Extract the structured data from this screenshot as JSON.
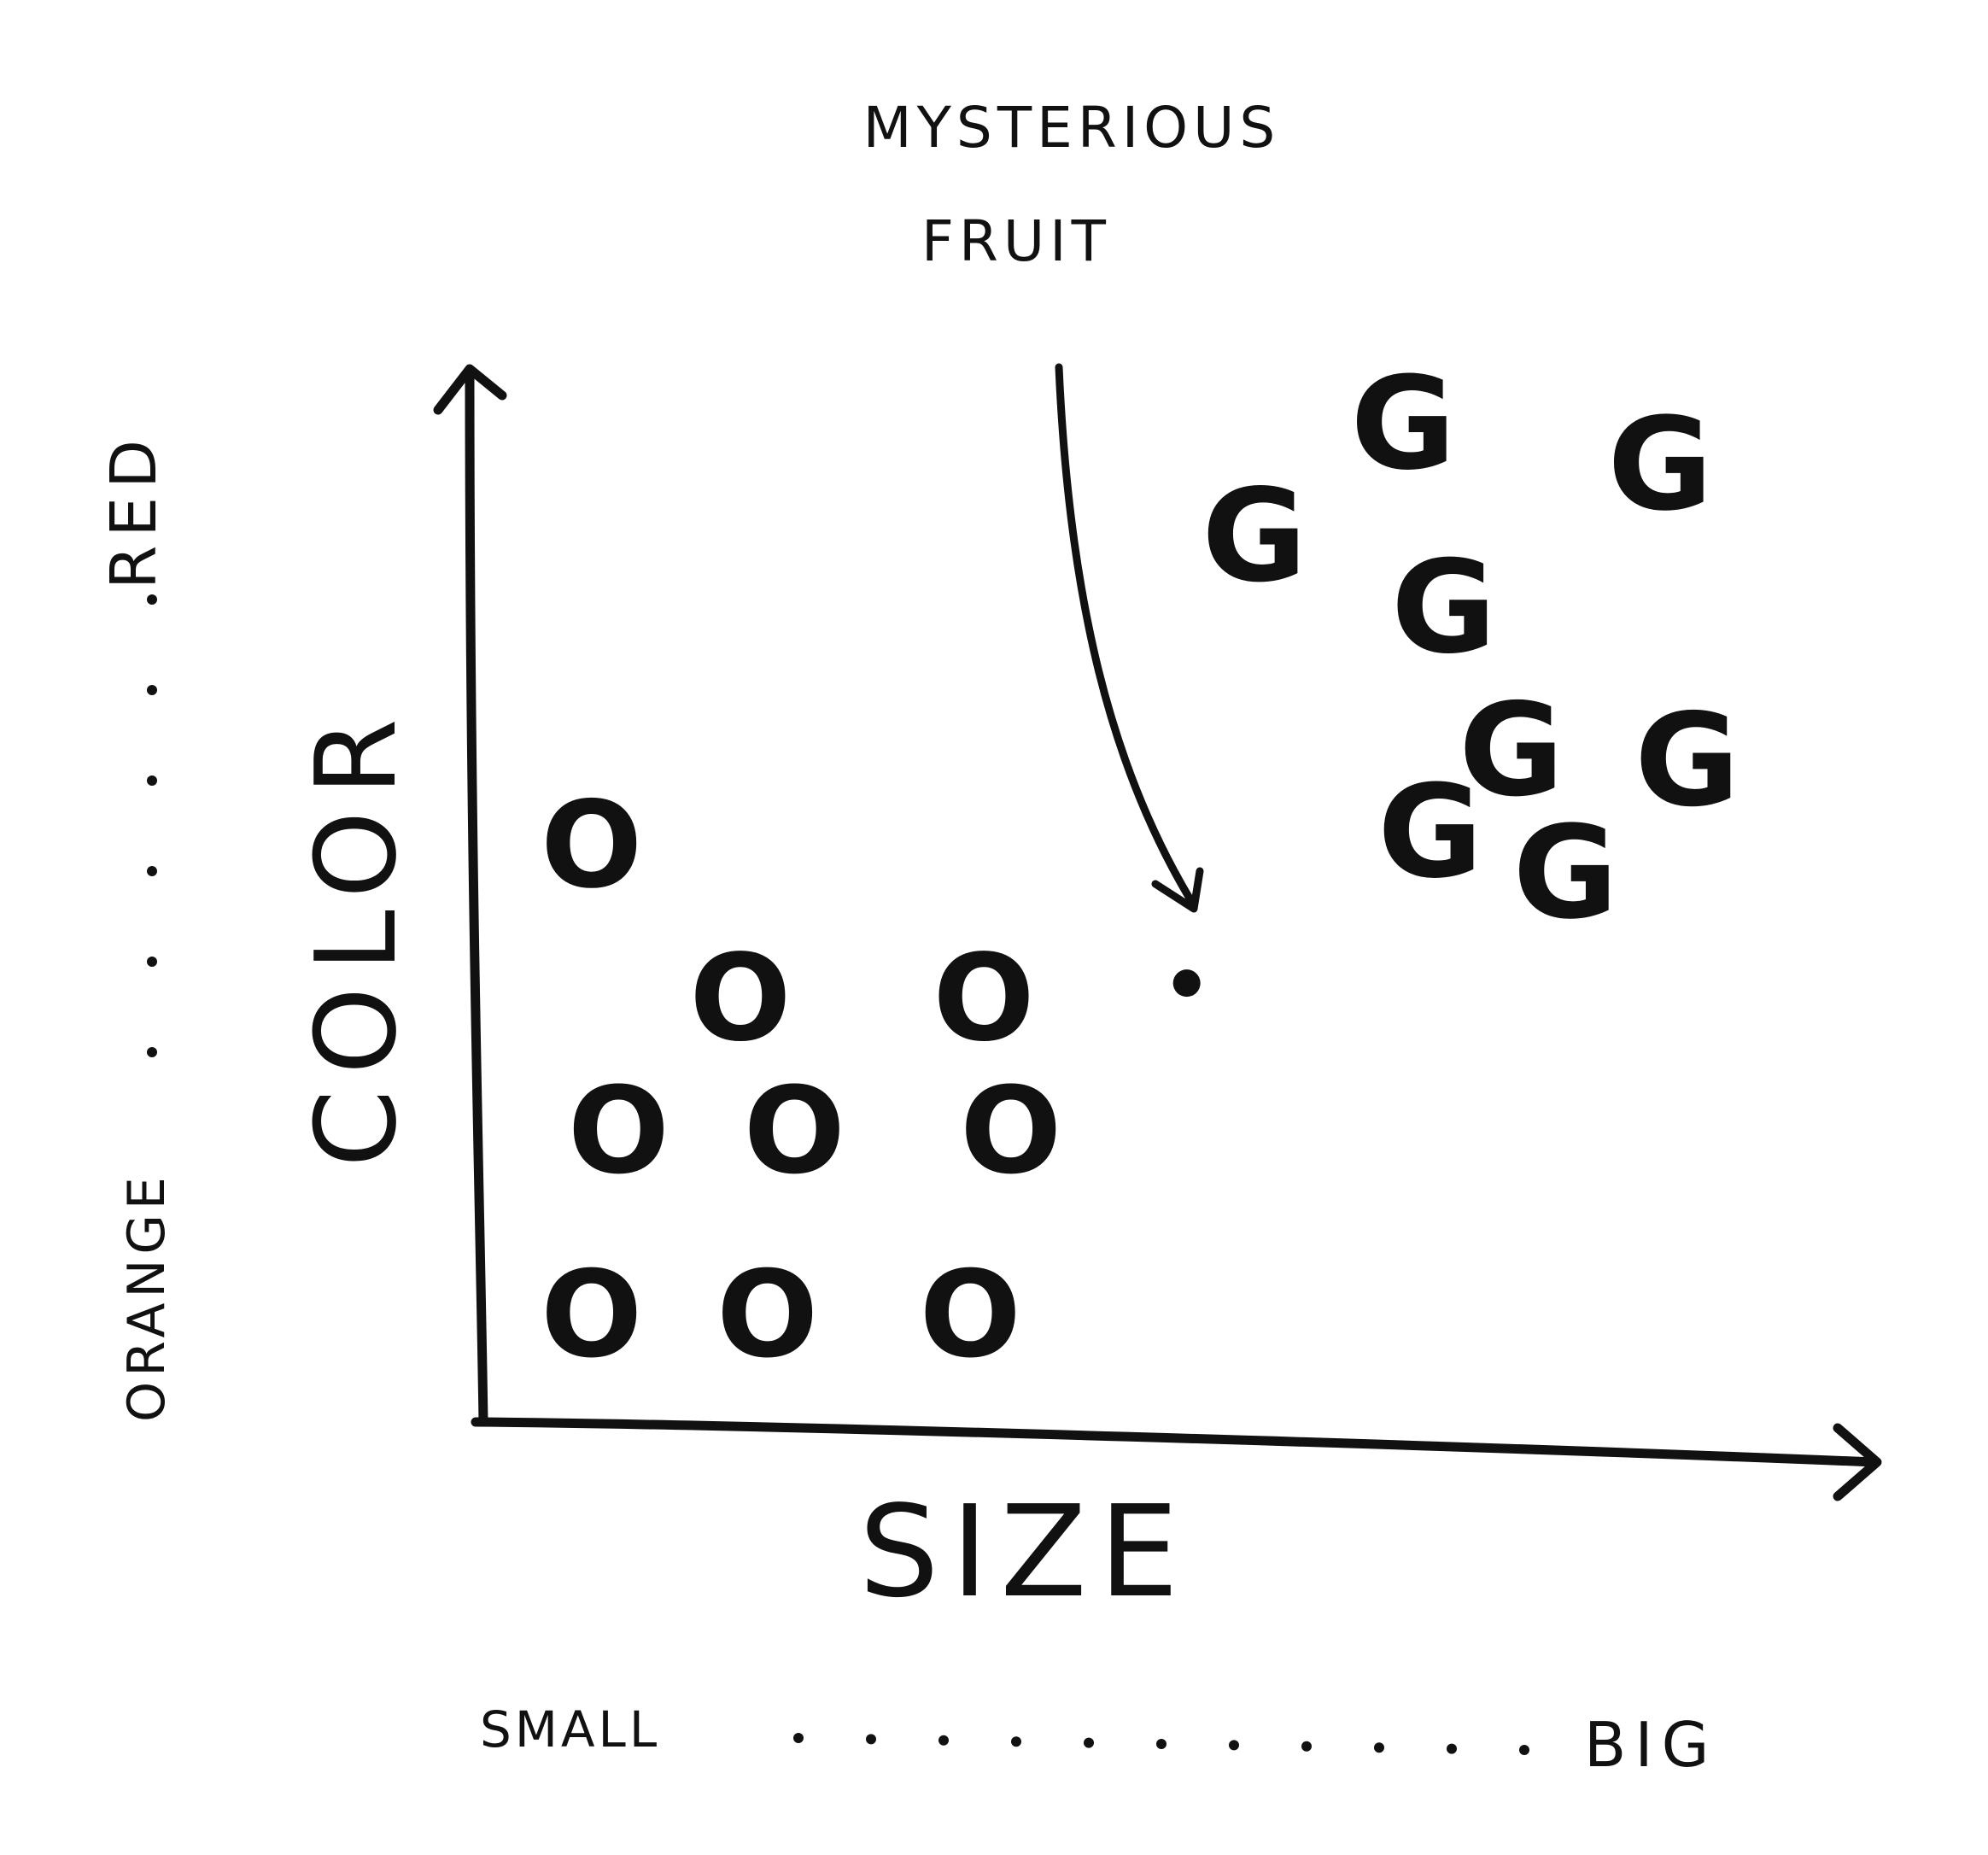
{
  "chart_data": {
    "type": "scatter",
    "xlabel": "SIZE",
    "ylabel": "COLOR",
    "x_scale_labels": {
      "low": "SMALL",
      "high": "BIG"
    },
    "y_scale_labels": {
      "low": "ORANGE",
      "high": "RED"
    },
    "xlim": [
      0,
      10
    ],
    "ylim": [
      0,
      10
    ],
    "series": [
      {
        "marker": "O",
        "values": [
          [
            0.8,
            5.6
          ],
          [
            1.9,
            4.1
          ],
          [
            3.7,
            4.1
          ],
          [
            1.0,
            2.8
          ],
          [
            2.3,
            2.8
          ],
          [
            3.9,
            2.8
          ],
          [
            0.8,
            1.0
          ],
          [
            2.1,
            1.0
          ],
          [
            3.6,
            1.0
          ]
        ]
      },
      {
        "marker": "G",
        "values": [
          [
            5.7,
            8.6
          ],
          [
            6.8,
            9.7
          ],
          [
            8.7,
            9.3
          ],
          [
            7.1,
            7.9
          ],
          [
            7.6,
            6.5
          ],
          [
            8.9,
            6.4
          ],
          [
            7.0,
            5.7
          ],
          [
            8.0,
            5.3
          ]
        ]
      }
    ],
    "query_point": {
      "x": 5.2,
      "y": 4.3
    },
    "annotations": [
      {
        "text": [
          "MYSTERIOUS",
          "FRUIT"
        ],
        "points_to": "query_point"
      }
    ]
  }
}
